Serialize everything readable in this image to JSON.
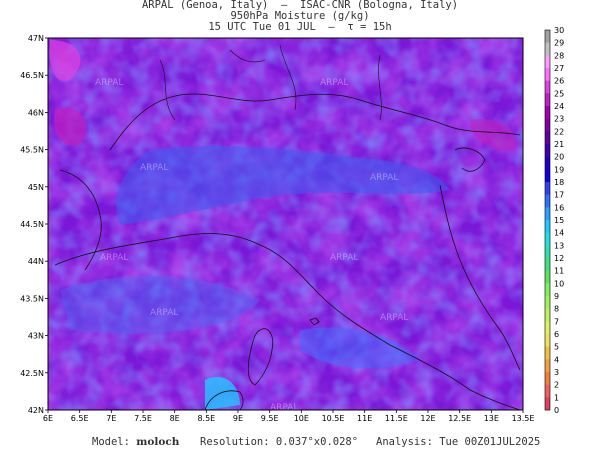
{
  "header": {
    "line1": "ARPAL (Genoa, Italy)  —  ISAC-CNR (Bologna, Italy)",
    "line2": "950hPa Moisture (g/kg)",
    "line3": "15 UTC Tue 01 JUL  —  τ = 15h"
  },
  "footer": {
    "model_label": "Model:",
    "model_value": "moloch",
    "resolution_label": "Resolution:",
    "resolution_value": "0.037°x0.028°",
    "analysis_label": "Analysis:",
    "analysis_value": "Tue 00Z01JUL2025"
  },
  "map": {
    "x_tick_labels": [
      "6E",
      "6.5E",
      "7E",
      "7.5E",
      "8E",
      "8.5E",
      "9E",
      "9.5E",
      "10E",
      "10.5E",
      "11E",
      "11.5E",
      "12E",
      "12.5E",
      "13E",
      "13.5E"
    ],
    "y_tick_labels": [
      "47N",
      "46.5N",
      "46N",
      "45.5N",
      "45N",
      "44.5N",
      "44N",
      "43.5N",
      "43N",
      "42.5N",
      "42N"
    ],
    "lon_range": [
      6,
      13.5
    ],
    "lat_range": [
      42,
      47
    ],
    "watermark": "ARPAL"
  },
  "colorbar": {
    "labels": [
      "30",
      "29",
      "28",
      "27",
      "26",
      "25",
      "24",
      "23",
      "22",
      "21",
      "20",
      "19",
      "18",
      "17",
      "16",
      "15",
      "14",
      "13",
      "12",
      "11",
      "10",
      "9",
      "8",
      "7",
      "6",
      "5",
      "4",
      "3",
      "2",
      "1",
      "0"
    ],
    "colors": [
      "#a0a0a0",
      "#c0c0c0",
      "#ff9cff",
      "#ff70ff",
      "#e040e0",
      "#c020c0",
      "#a000b0",
      "#8000a0",
      "#6000a0",
      "#4000b0",
      "#2000c0",
      "#1000e0",
      "#3040f0",
      "#3070ff",
      "#2aa0ff",
      "#20c8ff",
      "#20e0e0",
      "#30e0b0",
      "#40e080",
      "#60e060",
      "#80f060",
      "#a0f060",
      "#c0f060",
      "#e0f060",
      "#f0e060",
      "#f0c040",
      "#f0a040",
      "#f08040",
      "#f06060",
      "#e04060"
    ]
  }
}
